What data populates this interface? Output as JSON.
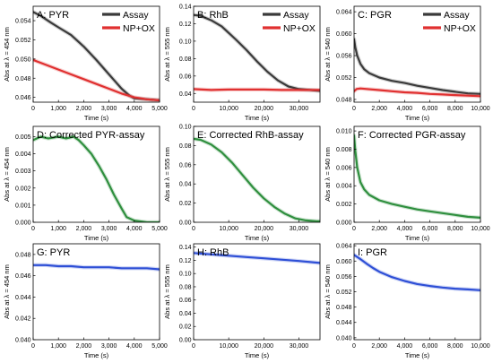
{
  "chart_data": [
    {
      "panel": "A",
      "title": "A: PYR",
      "type": "line",
      "xlabel": "Time (s)",
      "ylabel": "Abs at λ = 454 nm",
      "xlim": [
        0,
        5000
      ],
      "ylim": [
        0.0455,
        0.0555
      ],
      "xticks": [
        0,
        1000,
        2000,
        3000,
        4000,
        5000
      ],
      "xtick_labels": [
        "0",
        "1,000",
        "2,000",
        "3,000",
        "4,000",
        "5,000"
      ],
      "yticks": [
        0.046,
        0.048,
        0.05,
        0.052,
        0.054
      ],
      "ytick_labels": [
        "0.046",
        "0.048",
        "0.050",
        "0.052",
        "0.054"
      ],
      "legend": "top-right",
      "series": [
        {
          "name": "Assay",
          "color": "#3a3a3a",
          "x": [
            0,
            300,
            700,
            1000,
            1500,
            2000,
            2500,
            3000,
            3500,
            3800,
            4000,
            4500,
            5000
          ],
          "y": [
            0.0549,
            0.0545,
            0.0538,
            0.0533,
            0.0525,
            0.0513,
            0.0499,
            0.0484,
            0.0469,
            0.0462,
            0.0459,
            0.0458,
            0.0457
          ]
        },
        {
          "name": "NP+OX",
          "color": "#e03030",
          "x": [
            0,
            300,
            1000,
            1500,
            2000,
            2500,
            3000,
            3500,
            4000,
            4500,
            5000
          ],
          "y": [
            0.0499,
            0.0496,
            0.0489,
            0.0484,
            0.0479,
            0.0474,
            0.0469,
            0.0464,
            0.046,
            0.0458,
            0.0457
          ]
        }
      ]
    },
    {
      "panel": "B",
      "title": "B: RhB",
      "type": "line",
      "xlabel": "Time (s)",
      "ylabel": "Abs at λ = 555 nm",
      "xlim": [
        0,
        36000
      ],
      "ylim": [
        0.03,
        0.14
      ],
      "xticks": [
        0,
        10000,
        20000,
        30000
      ],
      "xtick_labels": [
        "0",
        "10,000",
        "20,000",
        "30,000"
      ],
      "yticks": [
        0.04,
        0.06,
        0.08,
        0.1,
        0.12,
        0.14
      ],
      "ytick_labels": [
        "0.04",
        "0.06",
        "0.08",
        "0.10",
        "0.12",
        "0.14"
      ],
      "legend": "top-right",
      "series": [
        {
          "name": "Assay",
          "color": "#3a3a3a",
          "x": [
            0,
            2000,
            5000,
            8000,
            12000,
            15000,
            18000,
            21000,
            24000,
            27000,
            30000,
            33000,
            36000
          ],
          "y": [
            0.13,
            0.129,
            0.124,
            0.117,
            0.102,
            0.09,
            0.077,
            0.065,
            0.055,
            0.048,
            0.045,
            0.044,
            0.043
          ]
        },
        {
          "name": "NP+OX",
          "color": "#e03030",
          "x": [
            0,
            5000,
            10000,
            15000,
            20000,
            25000,
            30000,
            36000
          ],
          "y": [
            0.045,
            0.044,
            0.0445,
            0.0445,
            0.0445,
            0.044,
            0.044,
            0.044
          ]
        }
      ]
    },
    {
      "panel": "C",
      "title": "C: PGR",
      "type": "line",
      "xlabel": "Time (s)",
      "ylabel": "Abs at λ = 540 nm",
      "xlim": [
        0,
        10000
      ],
      "ylim": [
        0.0475,
        0.065
      ],
      "xticks": [
        0,
        2000,
        4000,
        6000,
        8000,
        10000
      ],
      "xtick_labels": [
        "0",
        "2,000",
        "4,000",
        "6,000",
        "8,000",
        "10,000"
      ],
      "yticks": [
        0.048,
        0.052,
        0.056,
        0.06,
        0.064
      ],
      "ytick_labels": [
        "0.048",
        "0.052",
        "0.056",
        "0.060",
        "0.064"
      ],
      "legend": "top-right",
      "series": [
        {
          "name": "Assay",
          "color": "#3a3a3a",
          "x": [
            0,
            100,
            250,
            500,
            800,
            1200,
            2000,
            3000,
            4000,
            5000,
            6000,
            7000,
            8000,
            9000,
            10000
          ],
          "y": [
            0.059,
            0.0575,
            0.056,
            0.0545,
            0.0535,
            0.0528,
            0.052,
            0.0514,
            0.051,
            0.0505,
            0.0501,
            0.0497,
            0.0494,
            0.0491,
            0.049
          ]
        },
        {
          "name": "NP+OX",
          "color": "#e03030",
          "x": [
            0,
            200,
            500,
            1000,
            2000,
            3000,
            4000,
            5000,
            6000,
            7000,
            8000,
            9000,
            10000
          ],
          "y": [
            0.0495,
            0.0499,
            0.05,
            0.0499,
            0.0497,
            0.0495,
            0.0493,
            0.0492,
            0.049,
            0.0489,
            0.0488,
            0.0487,
            0.0486
          ]
        }
      ]
    },
    {
      "panel": "D",
      "title": "D: Corrected PYR-assay",
      "type": "line",
      "xlabel": "Time (s)",
      "ylabel": "Abs at λ = 454 nm",
      "xlim": [
        0,
        5000
      ],
      "ylim": [
        0,
        0.0056
      ],
      "xticks": [
        0,
        1000,
        2000,
        3000,
        4000,
        5000
      ],
      "xtick_labels": [
        "0",
        "1,000",
        "2,000",
        "3,000",
        "4,000",
        "5,000"
      ],
      "yticks": [
        0,
        0.001,
        0.002,
        0.003,
        0.004,
        0.005
      ],
      "ytick_labels": [
        "0.000",
        "0.001",
        "0.002",
        "0.003",
        "0.004",
        "0.005"
      ],
      "series": [
        {
          "name": "",
          "color": "#2f8f3e",
          "x": [
            0,
            300,
            600,
            1000,
            1300,
            1600,
            1800,
            2000,
            2300,
            2600,
            2900,
            3200,
            3500,
            3700,
            4000,
            4500,
            5000
          ],
          "y": [
            0.0048,
            0.005,
            0.0049,
            0.005,
            0.0049,
            0.005,
            0.0048,
            0.0045,
            0.004,
            0.0033,
            0.0025,
            0.0016,
            0.0008,
            0.0003,
            0.0001,
            0,
            0
          ]
        }
      ]
    },
    {
      "panel": "E",
      "title": "E: Corrected RhB-assay",
      "type": "line",
      "xlabel": "Time (s)",
      "ylabel": "Abs at λ = 555 nm",
      "xlim": [
        0,
        36000
      ],
      "ylim": [
        0,
        0.1
      ],
      "xticks": [
        0,
        10000,
        20000,
        30000
      ],
      "xtick_labels": [
        "0",
        "10,000",
        "20,000",
        "30,000"
      ],
      "yticks": [
        0,
        0.02,
        0.04,
        0.06,
        0.08,
        0.1
      ],
      "ytick_labels": [
        "0.00",
        "0.02",
        "0.04",
        "0.06",
        "0.08",
        "0.10"
      ],
      "series": [
        {
          "name": "",
          "color": "#2f8f3e",
          "x": [
            0,
            2000,
            5000,
            8000,
            11000,
            14000,
            17000,
            20000,
            23000,
            26000,
            29000,
            32000,
            35000,
            36000
          ],
          "y": [
            0.087,
            0.086,
            0.081,
            0.073,
            0.062,
            0.049,
            0.036,
            0.025,
            0.016,
            0.009,
            0.004,
            0.002,
            0.001,
            0.001
          ]
        }
      ]
    },
    {
      "panel": "F",
      "title": "F: Corrected PGR-assay",
      "type": "line",
      "xlabel": "Time (s)",
      "ylabel": "Abs at λ = 540 nm",
      "xlim": [
        0,
        10000
      ],
      "ylim": [
        0,
        0.0105
      ],
      "xticks": [
        0,
        2000,
        4000,
        6000,
        8000,
        10000
      ],
      "xtick_labels": [
        "0",
        "2,000",
        "4,000",
        "6,000",
        "8,000",
        "10,000"
      ],
      "yticks": [
        0,
        0.002,
        0.004,
        0.006,
        0.008,
        0.01
      ],
      "ytick_labels": [
        "0.000",
        "0.002",
        "0.004",
        "0.006",
        "0.008",
        "0.010"
      ],
      "series": [
        {
          "name": "",
          "color": "#2f8f3e",
          "x": [
            0,
            100,
            250,
            500,
            800,
            1200,
            2000,
            3000,
            4000,
            5000,
            6000,
            7000,
            8000,
            9000,
            10000
          ],
          "y": [
            0.0095,
            0.0078,
            0.006,
            0.0044,
            0.0036,
            0.003,
            0.0024,
            0.002,
            0.0017,
            0.0014,
            0.0012,
            0.001,
            0.0008,
            0.0006,
            0.0005
          ]
        }
      ]
    },
    {
      "panel": "G",
      "title": "G: PYR",
      "type": "line",
      "xlabel": "Time (s)",
      "ylabel": "Abs at λ = 454 nm",
      "xlim": [
        0,
        5000
      ],
      "ylim": [
        0.04,
        0.049
      ],
      "xticks": [
        0,
        1000,
        2000,
        3000,
        4000,
        5000
      ],
      "xtick_labels": [
        "0",
        "1,000",
        "2,000",
        "3,000",
        "4,000",
        "5,000"
      ],
      "yticks": [
        0.04,
        0.042,
        0.044,
        0.046,
        0.048
      ],
      "ytick_labels": [
        "0.040",
        "0.042",
        "0.044",
        "0.046",
        "0.048"
      ],
      "series": [
        {
          "name": "",
          "color": "#2e4fd6",
          "x": [
            0,
            500,
            1000,
            1500,
            2000,
            2500,
            3000,
            3500,
            4000,
            4500,
            5000
          ],
          "y": [
            0.047,
            0.047,
            0.0469,
            0.0469,
            0.0468,
            0.0468,
            0.0468,
            0.0467,
            0.0467,
            0.0467,
            0.0466
          ]
        }
      ]
    },
    {
      "panel": "H",
      "title": "H: RhB",
      "type": "line",
      "xlabel": "Time (s)",
      "ylabel": "Abs at λ = 555 nm",
      "xlim": [
        0,
        36000
      ],
      "ylim": [
        0,
        0.145
      ],
      "xticks": [
        0,
        10000,
        20000,
        30000
      ],
      "xtick_labels": [
        "0",
        "10,000",
        "20,000",
        "30,000"
      ],
      "yticks": [
        0,
        0.02,
        0.04,
        0.06,
        0.08,
        0.1,
        0.12,
        0.14
      ],
      "ytick_labels": [
        "0.00",
        "0.02",
        "0.04",
        "0.06",
        "0.08",
        "0.10",
        "0.12",
        "0.14"
      ],
      "series": [
        {
          "name": "",
          "color": "#2e4fd6",
          "x": [
            0,
            5000,
            10000,
            15000,
            20000,
            25000,
            30000,
            36000
          ],
          "y": [
            0.131,
            0.129,
            0.127,
            0.125,
            0.123,
            0.121,
            0.119,
            0.116
          ]
        }
      ]
    },
    {
      "panel": "I",
      "title": "I: PGR",
      "type": "line",
      "xlabel": "Time (s)",
      "ylabel": "Abs at λ = 540 nm",
      "xlim": [
        0,
        10000
      ],
      "ylim": [
        0.0395,
        0.0645
      ],
      "xticks": [
        0,
        2000,
        4000,
        6000,
        8000,
        10000
      ],
      "xtick_labels": [
        "0",
        "2,000",
        "4,000",
        "6,000",
        "8,000",
        "10,000"
      ],
      "yticks": [
        0.04,
        0.044,
        0.048,
        0.052,
        0.056,
        0.06,
        0.064
      ],
      "ytick_labels": [
        "0.040",
        "0.044",
        "0.048",
        "0.052",
        "0.056",
        "0.060",
        "0.064"
      ],
      "series": [
        {
          "name": "",
          "color": "#2e4fd6",
          "x": [
            0,
            500,
            1000,
            1500,
            2000,
            3000,
            4000,
            5000,
            6000,
            7000,
            8000,
            9000,
            10000
          ],
          "y": [
            0.0616,
            0.0605,
            0.0593,
            0.0582,
            0.0572,
            0.0558,
            0.0548,
            0.054,
            0.0535,
            0.0531,
            0.0528,
            0.0526,
            0.0524
          ]
        }
      ]
    }
  ]
}
